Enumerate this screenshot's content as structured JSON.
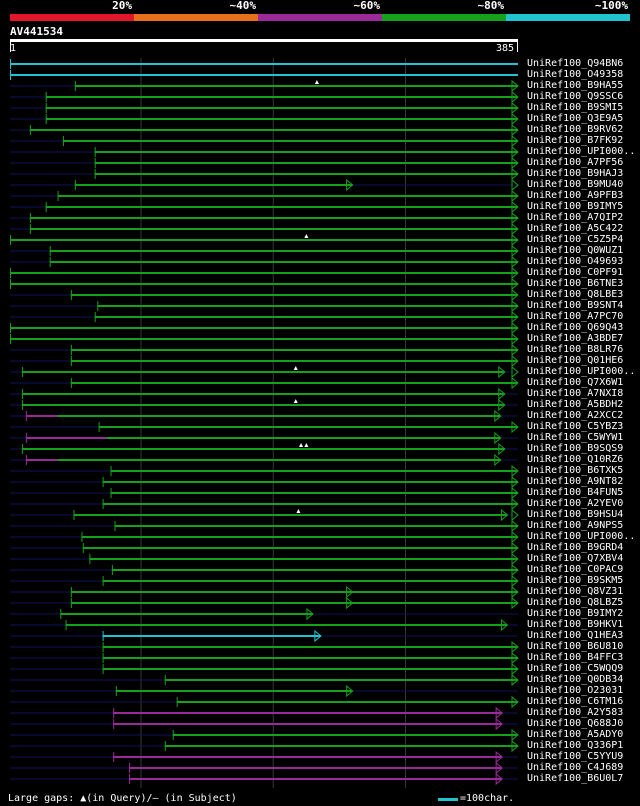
{
  "legend": {
    "labels": [
      "20%",
      "~40%",
      "~60%",
      "~80%",
      "~100%"
    ],
    "colors": [
      "#e3162b",
      "#e8701b",
      "#9a2a9a",
      "#15a11b",
      "#1fc4d0"
    ]
  },
  "query": {
    "title": "AV441534",
    "start_label": "1",
    "end_label": "385"
  },
  "colors": {
    "query_line": "#12125a",
    "grid": "#383838",
    "ruler": "#ffffff"
  },
  "hits": [
    {
      "label": "UniRef100_Q94BN6",
      "start": 1,
      "end": 385,
      "color": "cyan",
      "segments": [
        [
          1,
          385
        ]
      ],
      "arrows": [],
      "markers": []
    },
    {
      "label": "UniRef100_O49358",
      "start": 1,
      "end": 385,
      "color": "cyan",
      "segments": [
        [
          1,
          385
        ]
      ],
      "arrows": [],
      "markers": []
    },
    {
      "label": "UniRef100_B9HA55",
      "start": 1,
      "end": 385,
      "color": "green",
      "segments": [
        [
          50,
          385
        ]
      ],
      "arrows": [
        385
      ],
      "markers": [
        233
      ]
    },
    {
      "label": "UniRef100_Q9SSC6",
      "start": 1,
      "end": 385,
      "color": "green",
      "segments": [
        [
          28,
          385
        ]
      ],
      "arrows": [
        385
      ],
      "markers": []
    },
    {
      "label": "UniRef100_B9SMI5",
      "start": 1,
      "end": 385,
      "color": "green",
      "segments": [
        [
          28,
          385
        ]
      ],
      "arrows": [
        385
      ],
      "markers": []
    },
    {
      "label": "UniRef100_Q3E9A5",
      "start": 1,
      "end": 385,
      "color": "green",
      "segments": [
        [
          28,
          385
        ]
      ],
      "arrows": [
        385
      ],
      "markers": []
    },
    {
      "label": "UniRef100_B9RV62",
      "start": 1,
      "end": 385,
      "color": "green",
      "segments": [
        [
          16,
          385
        ]
      ],
      "arrows": [
        385
      ],
      "markers": []
    },
    {
      "label": "UniRef100_B7FK92",
      "start": 1,
      "end": 385,
      "color": "green",
      "segments": [
        [
          41,
          385
        ]
      ],
      "arrows": [
        385
      ],
      "markers": []
    },
    {
      "label": "UniRef100_UPI000..",
      "start": 1,
      "end": 385,
      "color": "green",
      "segments": [
        [
          65,
          385
        ]
      ],
      "arrows": [
        385
      ],
      "markers": []
    },
    {
      "label": "UniRef100_A7PF56",
      "start": 1,
      "end": 385,
      "color": "green",
      "segments": [
        [
          65,
          385
        ]
      ],
      "arrows": [
        385
      ],
      "markers": []
    },
    {
      "label": "UniRef100_B9HAJ3",
      "start": 1,
      "end": 385,
      "color": "green",
      "segments": [
        [
          65,
          385
        ]
      ],
      "arrows": [
        385
      ],
      "markers": []
    },
    {
      "label": "UniRef100_B9MU40",
      "start": 1,
      "end": 385,
      "color": "green",
      "segments": [
        [
          50,
          260
        ]
      ],
      "arrows": [
        260,
        385
      ],
      "markers": []
    },
    {
      "label": "UniRef100_A9PFB3",
      "start": 1,
      "end": 385,
      "color": "green",
      "segments": [
        [
          37,
          385
        ]
      ],
      "arrows": [
        385
      ],
      "markers": []
    },
    {
      "label": "UniRef100_B9IMY5",
      "start": 1,
      "end": 385,
      "color": "green",
      "segments": [
        [
          28,
          385
        ]
      ],
      "arrows": [
        385
      ],
      "markers": []
    },
    {
      "label": "UniRef100_A7QIP2",
      "start": 1,
      "end": 385,
      "color": "green",
      "segments": [
        [
          16,
          385
        ]
      ],
      "arrows": [
        385
      ],
      "markers": []
    },
    {
      "label": "UniRef100_A5C422",
      "start": 1,
      "end": 385,
      "color": "green",
      "segments": [
        [
          16,
          385
        ]
      ],
      "arrows": [
        385
      ],
      "markers": []
    },
    {
      "label": "UniRef100_C5Z5P4",
      "start": 1,
      "end": 385,
      "color": "green",
      "segments": [
        [
          1,
          385
        ]
      ],
      "arrows": [
        385
      ],
      "markers": [
        225
      ]
    },
    {
      "label": "UniRef100_Q0WUZ1",
      "start": 1,
      "end": 385,
      "color": "green",
      "segments": [
        [
          31,
          385
        ]
      ],
      "arrows": [
        385
      ],
      "markers": []
    },
    {
      "label": "UniRef100_O49693",
      "start": 1,
      "end": 385,
      "color": "green",
      "segments": [
        [
          31,
          385
        ]
      ],
      "arrows": [
        385
      ],
      "markers": []
    },
    {
      "label": "UniRef100_C0PF91",
      "start": 1,
      "end": 385,
      "color": "green",
      "segments": [
        [
          1,
          385
        ]
      ],
      "arrows": [
        385
      ],
      "markers": []
    },
    {
      "label": "UniRef100_B6TNE3",
      "start": 1,
      "end": 385,
      "color": "green",
      "segments": [
        [
          1,
          385
        ]
      ],
      "arrows": [
        385
      ],
      "markers": []
    },
    {
      "label": "UniRef100_Q8LBE3",
      "start": 1,
      "end": 385,
      "color": "green",
      "segments": [
        [
          47,
          385
        ]
      ],
      "arrows": [
        385
      ],
      "markers": []
    },
    {
      "label": "UniRef100_B9SNT4",
      "start": 1,
      "end": 385,
      "color": "green",
      "segments": [
        [
          67,
          385
        ]
      ],
      "arrows": [
        385
      ],
      "markers": []
    },
    {
      "label": "UniRef100_A7PC70",
      "start": 1,
      "end": 385,
      "color": "green",
      "segments": [
        [
          65,
          385
        ]
      ],
      "arrows": [
        385
      ],
      "markers": []
    },
    {
      "label": "UniRef100_Q69Q43",
      "start": 1,
      "end": 385,
      "color": "green",
      "segments": [
        [
          1,
          385
        ]
      ],
      "arrows": [
        385
      ],
      "markers": []
    },
    {
      "label": "UniRef100_A3BDE7",
      "start": 1,
      "end": 385,
      "color": "green",
      "segments": [
        [
          1,
          385
        ]
      ],
      "arrows": [
        385
      ],
      "markers": []
    },
    {
      "label": "UniRef100_B8LR76",
      "start": 1,
      "end": 385,
      "color": "green",
      "segments": [
        [
          47,
          385
        ]
      ],
      "arrows": [
        385
      ],
      "markers": []
    },
    {
      "label": "UniRef100_Q01HE6",
      "start": 1,
      "end": 385,
      "color": "green",
      "segments": [
        [
          47,
          385
        ]
      ],
      "arrows": [
        385
      ],
      "markers": []
    },
    {
      "label": "UniRef100_UPI000..",
      "start": 1,
      "end": 385,
      "color": "green",
      "segments": [
        [
          10,
          375
        ]
      ],
      "arrows": [
        375,
        385
      ],
      "markers": [
        217
      ]
    },
    {
      "label": "UniRef100_Q7X6W1",
      "start": 1,
      "end": 385,
      "color": "green",
      "segments": [
        [
          47,
          385
        ]
      ],
      "arrows": [
        385
      ],
      "markers": []
    },
    {
      "label": "UniRef100_A7NXI8",
      "start": 1,
      "end": 385,
      "color": "green",
      "segments": [
        [
          10,
          375
        ]
      ],
      "arrows": [
        375
      ],
      "markers": []
    },
    {
      "label": "UniRef100_A5BDH2",
      "start": 1,
      "end": 385,
      "color": "green",
      "segments": [
        [
          10,
          375
        ]
      ],
      "arrows": [
        375
      ],
      "markers": [
        217
      ]
    },
    {
      "label": "UniRef100_A2XCC2",
      "start": 1,
      "end": 385,
      "color": "magenta",
      "segments": [
        [
          13,
          37
        ]
      ],
      "segments2": [
        [
          37,
          372
        ]
      ],
      "arrows": [
        372
      ],
      "markers": []
    },
    {
      "label": "UniRef100_C5YBZ3",
      "start": 1,
      "end": 385,
      "color": "green",
      "segments": [
        [
          68,
          385
        ]
      ],
      "arrows": [
        385
      ],
      "markers": []
    },
    {
      "label": "UniRef100_C5WYW1",
      "start": 1,
      "end": 385,
      "color": "magenta",
      "segments": [
        [
          13,
          74
        ]
      ],
      "segments2": [
        [
          74,
          372
        ]
      ],
      "arrows": [
        372
      ],
      "markers": []
    },
    {
      "label": "UniRef100_B9SQS9",
      "start": 1,
      "end": 385,
      "color": "green",
      "segments": [
        [
          10,
          375
        ]
      ],
      "arrows": [
        375
      ],
      "markers": [
        221,
        225
      ]
    },
    {
      "label": "UniRef100_Q10RZ6",
      "start": 1,
      "end": 385,
      "color": "magenta",
      "segments": [
        [
          13,
          37
        ]
      ],
      "segments2": [
        [
          37,
          372
        ]
      ],
      "arrows": [
        372
      ],
      "markers": []
    },
    {
      "label": "UniRef100_B6TXK5",
      "start": 1,
      "end": 385,
      "color": "green",
      "segments": [
        [
          77,
          385
        ]
      ],
      "arrows": [
        385
      ],
      "markers": []
    },
    {
      "label": "UniRef100_A9NT82",
      "start": 1,
      "end": 385,
      "color": "green",
      "segments": [
        [
          71,
          385
        ]
      ],
      "arrows": [
        385
      ],
      "markers": []
    },
    {
      "label": "UniRef100_B4FUN5",
      "start": 1,
      "end": 385,
      "color": "green",
      "segments": [
        [
          77,
          385
        ]
      ],
      "arrows": [
        385
      ],
      "markers": []
    },
    {
      "label": "UniRef100_A2YEV0",
      "start": 1,
      "end": 385,
      "color": "green",
      "segments": [
        [
          71,
          385
        ]
      ],
      "arrows": [
        385
      ],
      "markers": []
    },
    {
      "label": "UniRef100_B9HSU4",
      "start": 1,
      "end": 385,
      "color": "green",
      "segments": [
        [
          49,
          377
        ]
      ],
      "arrows": [
        377,
        385
      ],
      "markers": [
        219
      ]
    },
    {
      "label": "UniRef100_A9NPS5",
      "start": 1,
      "end": 385,
      "color": "green",
      "segments": [
        [
          80,
          385
        ]
      ],
      "arrows": [
        385
      ],
      "markers": []
    },
    {
      "label": "UniRef100_UPI000..",
      "start": 1,
      "end": 385,
      "color": "green",
      "segments": [
        [
          55,
          385
        ]
      ],
      "arrows": [
        385
      ],
      "markers": []
    },
    {
      "label": "UniRef100_B9GRD4",
      "start": 1,
      "end": 385,
      "color": "green",
      "segments": [
        [
          56,
          385
        ]
      ],
      "arrows": [
        385
      ],
      "markers": []
    },
    {
      "label": "UniRef100_Q7XBV4",
      "start": 1,
      "end": 385,
      "color": "green",
      "segments": [
        [
          61,
          385
        ]
      ],
      "arrows": [
        385
      ],
      "markers": []
    },
    {
      "label": "UniRef100_C0PAC9",
      "start": 1,
      "end": 385,
      "color": "green",
      "segments": [
        [
          78,
          385
        ]
      ],
      "arrows": [
        385
      ],
      "markers": []
    },
    {
      "label": "UniRef100_B9SKM5",
      "start": 1,
      "end": 385,
      "color": "green",
      "segments": [
        [
          71,
          385
        ]
      ],
      "arrows": [
        385
      ],
      "markers": []
    },
    {
      "label": "UniRef100_Q8VZ31",
      "start": 1,
      "end": 385,
      "color": "green",
      "segments": [
        [
          47,
          385
        ]
      ],
      "arrows": [
        260,
        385
      ],
      "markers": []
    },
    {
      "label": "UniRef100_Q8LBZ5",
      "start": 1,
      "end": 385,
      "color": "green",
      "segments": [
        [
          47,
          385
        ]
      ],
      "arrows": [
        260,
        385
      ],
      "markers": []
    },
    {
      "label": "UniRef100_B9IMY2",
      "start": 1,
      "end": 385,
      "color": "green",
      "segments": [
        [
          39,
          230
        ]
      ],
      "arrows": [
        230
      ],
      "markers": []
    },
    {
      "label": "UniRef100_B9HKV1",
      "start": 1,
      "end": 385,
      "color": "green",
      "segments": [
        [
          43,
          377
        ]
      ],
      "arrows": [
        377
      ],
      "markers": []
    },
    {
      "label": "UniRef100_Q1HEA3",
      "start": 1,
      "end": 385,
      "color": "cyan",
      "segments": [
        [
          71,
          236
        ]
      ],
      "arrows": [
        236
      ],
      "markers": []
    },
    {
      "label": "UniRef100_B6U810",
      "start": 1,
      "end": 385,
      "color": "green",
      "segments": [
        [
          71,
          385
        ]
      ],
      "arrows": [
        385
      ],
      "markers": []
    },
    {
      "label": "UniRef100_B4FFC3",
      "start": 1,
      "end": 385,
      "color": "green",
      "segments": [
        [
          71,
          385
        ]
      ],
      "arrows": [
        385
      ],
      "markers": []
    },
    {
      "label": "UniRef100_C5WQQ9",
      "start": 1,
      "end": 385,
      "color": "green",
      "segments": [
        [
          71,
          385
        ]
      ],
      "arrows": [
        385
      ],
      "markers": []
    },
    {
      "label": "UniRef100_Q0DB34",
      "start": 1,
      "end": 385,
      "color": "green",
      "segments": [
        [
          118,
          385
        ]
      ],
      "arrows": [
        385
      ],
      "markers": []
    },
    {
      "label": "UniRef100_O23031",
      "start": 1,
      "end": 385,
      "color": "green",
      "segments": [
        [
          81,
          260
        ]
      ],
      "arrows": [
        260
      ],
      "markers": []
    },
    {
      "label": "UniRef100_C6TM16",
      "start": 1,
      "end": 385,
      "color": "green",
      "segments": [
        [
          127,
          385
        ]
      ],
      "arrows": [
        385
      ],
      "markers": []
    },
    {
      "label": "UniRef100_A2Y583",
      "start": 1,
      "end": 385,
      "color": "magenta",
      "segments": [
        [
          79,
          373
        ]
      ],
      "arrows": [
        373
      ],
      "markers": []
    },
    {
      "label": "UniRef100_Q688J0",
      "start": 1,
      "end": 385,
      "color": "magenta",
      "segments": [
        [
          79,
          373
        ]
      ],
      "arrows": [
        373
      ],
      "markers": []
    },
    {
      "label": "UniRef100_A5ADY0",
      "start": 1,
      "end": 385,
      "color": "green",
      "segments": [
        [
          124,
          385
        ]
      ],
      "arrows": [
        385
      ],
      "markers": []
    },
    {
      "label": "UniRef100_Q336P1",
      "start": 1,
      "end": 385,
      "color": "green",
      "segments": [
        [
          118,
          385
        ]
      ],
      "arrows": [
        385
      ],
      "markers": []
    },
    {
      "label": "UniRef100_C5YYU9",
      "start": 1,
      "end": 385,
      "color": "magenta",
      "segments": [
        [
          79,
          373
        ]
      ],
      "arrows": [
        373
      ],
      "markers": []
    },
    {
      "label": "UniRef100_C4J689",
      "start": 1,
      "end": 385,
      "color": "magenta",
      "segments": [
        [
          91,
          373
        ]
      ],
      "arrows": [
        373
      ],
      "markers": []
    },
    {
      "label": "UniRef100_B6U0L7",
      "start": 1,
      "end": 385,
      "color": "magenta",
      "segments": [
        [
          91,
          373
        ]
      ],
      "arrows": [
        373
      ],
      "markers": []
    }
  ],
  "footer": {
    "gaps_text": "Large gaps: ▲(in Query)/‒ (in Subject)",
    "scale_text": "=100char."
  }
}
